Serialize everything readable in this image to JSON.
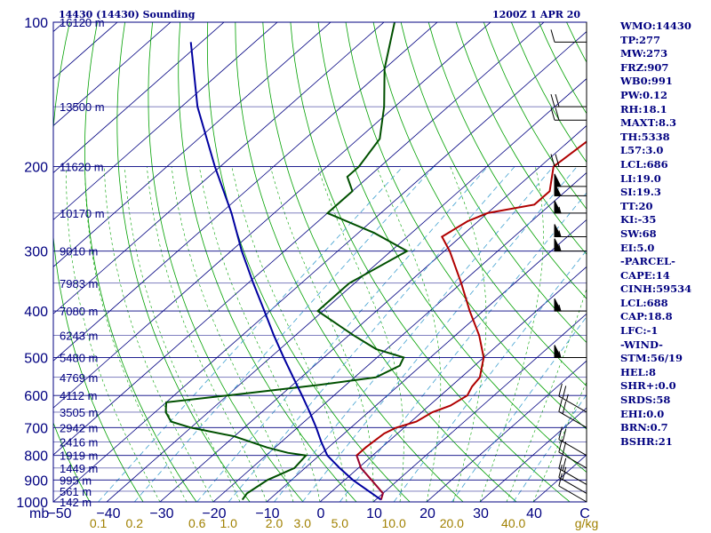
{
  "header": {
    "left": "14430 (14430) Sounding",
    "right": "1200Z  1 APR 20"
  },
  "indices": [
    "WMO:14430",
    "TP:277",
    "MW:273",
    "FRZ:907",
    "WB0:991",
    "PW:0.12",
    "RH:18.1",
    "MAXT:8.3",
    "TH:5338",
    "L57:3.0",
    "LCL:686",
    "LI:19.0",
    "SI:19.3",
    "TT:20",
    "KI:-35",
    "SW:68",
    "EI:5.0",
    "-PARCEL-",
    "CAPE:14",
    "CINH:59534",
    "LCL:688",
    "CAP:18.8",
    "LFC:-1",
    "-WIND-",
    "STM:56/19",
    "HEL:8",
    "SHR+:0.0",
    "SRDS:58",
    "EHI:0.0",
    "BRN:0.7",
    "BSHR:21"
  ],
  "colors": {
    "frame": "#000080",
    "isobar": "#000080",
    "isotherm": "#000080",
    "dry_adiabat": "#00a000",
    "moist_adiabat": "#00a000",
    "mixing_ratio": "#40a0d0",
    "temperature": "#b00000",
    "dewpoint": "#005000",
    "parcel": "#0000a0",
    "wind_axis": "#000000",
    "text": "#000080",
    "mixing_label": "#a08000"
  },
  "chart_data": {
    "type": "line",
    "chart_kind": "skew-T log-P sounding",
    "y_axis": {
      "unit": "mb",
      "scale": "log",
      "range": [
        1000,
        100
      ],
      "isobars": [
        100,
        200,
        300,
        400,
        500,
        600,
        700,
        800,
        900,
        1000
      ]
    },
    "x_axis": {
      "unit": "C",
      "ticks": [
        -50,
        -40,
        -30,
        -20,
        -10,
        0,
        10,
        20,
        30,
        40
      ]
    },
    "x_tick_labels": [
      "−50",
      "−40",
      "−30",
      "−20",
      "−10",
      "0",
      "10",
      "20",
      "30",
      "40",
      "C"
    ],
    "y_unit_label": "mb",
    "height_labels": [
      {
        "p": 100,
        "label": "16120 m"
      },
      {
        "p": 150,
        "label": "13500 m"
      },
      {
        "p": 200,
        "label": "11620 m"
      },
      {
        "p": 250,
        "label": "10170 m"
      },
      {
        "p": 300,
        "label": "9010 m"
      },
      {
        "p": 350,
        "label": "7983 m"
      },
      {
        "p": 400,
        "label": "7080 m"
      },
      {
        "p": 450,
        "label": "6243 m"
      },
      {
        "p": 500,
        "label": "5480 m"
      },
      {
        "p": 550,
        "label": "4769 m"
      },
      {
        "p": 600,
        "label": "4112 m"
      },
      {
        "p": 650,
        "label": "3505 m"
      },
      {
        "p": 700,
        "label": "2942 m"
      },
      {
        "p": 750,
        "label": "2416 m"
      },
      {
        "p": 800,
        "label": "1919 m"
      },
      {
        "p": 850,
        "label": "1449 m"
      },
      {
        "p": 900,
        "label": "995 m"
      },
      {
        "p": 950,
        "label": "561 m"
      },
      {
        "p": 1000,
        "label": "142 m"
      }
    ],
    "mixing_ratio_unit": "g/kg",
    "mixing_ratio_labels": [
      {
        "value": 0.1,
        "text": "0.1"
      },
      {
        "value": 0.2,
        "text": "0.2"
      },
      {
        "value": 0.6,
        "text": "0.6"
      },
      {
        "value": 1.0,
        "text": "1.0"
      },
      {
        "value": 2.0,
        "text": "2.0"
      },
      {
        "value": 3.0,
        "text": "3.0"
      },
      {
        "value": 5.0,
        "text": "5.0"
      },
      {
        "value": 10.0,
        "text": "10.0"
      },
      {
        "value": 20.0,
        "text": "20.0"
      },
      {
        "value": 40.0,
        "text": "40.0"
      }
    ],
    "series": [
      {
        "key": "temperature",
        "points": [
          {
            "p": 990,
            "t": 11.0
          },
          {
            "p": 960,
            "t": 10.0
          },
          {
            "p": 900,
            "t": 5.0
          },
          {
            "p": 850,
            "t": 0.5
          },
          {
            "p": 800,
            "t": -3.0
          },
          {
            "p": 770,
            "t": -3.0
          },
          {
            "p": 720,
            "t": -2.5
          },
          {
            "p": 700,
            "t": -1.5
          },
          {
            "p": 680,
            "t": 1.0
          },
          {
            "p": 650,
            "t": 2.0
          },
          {
            "p": 630,
            "t": 4.0
          },
          {
            "p": 600,
            "t": 5.0
          },
          {
            "p": 575,
            "t": 4.0
          },
          {
            "p": 550,
            "t": 3.5
          },
          {
            "p": 500,
            "t": 0.0
          },
          {
            "p": 450,
            "t": -5.5
          },
          {
            "p": 400,
            "t": -12.5
          },
          {
            "p": 350,
            "t": -20.0
          },
          {
            "p": 300,
            "t": -29.0
          },
          {
            "p": 280,
            "t": -33.5
          },
          {
            "p": 260,
            "t": -32.0
          },
          {
            "p": 250,
            "t": -30.0
          },
          {
            "p": 240,
            "t": -23.0
          },
          {
            "p": 225,
            "t": -23.0
          },
          {
            "p": 200,
            "t": -27.5
          },
          {
            "p": 175,
            "t": -26.5
          },
          {
            "p": 150,
            "t": -30.0
          },
          {
            "p": 125,
            "t": -36.0
          },
          {
            "p": 100,
            "t": -45.0
          }
        ]
      },
      {
        "key": "dewpoint",
        "points": [
          {
            "p": 990,
            "t": -15.0
          },
          {
            "p": 960,
            "t": -15.5
          },
          {
            "p": 900,
            "t": -14.5
          },
          {
            "p": 850,
            "t": -12.0
          },
          {
            "p": 800,
            "t": -12.5
          },
          {
            "p": 790,
            "t": -16.5
          },
          {
            "p": 770,
            "t": -21.5
          },
          {
            "p": 730,
            "t": -30.0
          },
          {
            "p": 700,
            "t": -40.0
          },
          {
            "p": 680,
            "t": -45.0
          },
          {
            "p": 650,
            "t": -48.0
          },
          {
            "p": 620,
            "t": -50.0
          },
          {
            "p": 600,
            "t": -40.0
          },
          {
            "p": 570,
            "t": -25.0
          },
          {
            "p": 550,
            "t": -16.0
          },
          {
            "p": 520,
            "t": -14.0
          },
          {
            "p": 500,
            "t": -15.0
          },
          {
            "p": 480,
            "t": -22.0
          },
          {
            "p": 450,
            "t": -29.0
          },
          {
            "p": 400,
            "t": -41.0
          },
          {
            "p": 350,
            "t": -41.0
          },
          {
            "p": 300,
            "t": -37.0
          },
          {
            "p": 275,
            "t": -47.0
          },
          {
            "p": 250,
            "t": -60.0
          },
          {
            "p": 225,
            "t": -60.0
          },
          {
            "p": 210,
            "t": -64.0
          },
          {
            "p": 200,
            "t": -64.0
          },
          {
            "p": 175,
            "t": -66.0
          },
          {
            "p": 150,
            "t": -72.0
          },
          {
            "p": 125,
            "t": -80.0
          },
          {
            "p": 100,
            "t": -88.0
          }
        ]
      },
      {
        "key": "parcel",
        "points": [
          {
            "p": 990,
            "t": 11.0
          },
          {
            "p": 900,
            "t": 1.5
          },
          {
            "p": 850,
            "t": -3.5
          },
          {
            "p": 800,
            "t": -8.5
          },
          {
            "p": 750,
            "t": -12.5
          },
          {
            "p": 700,
            "t": -16.5
          },
          {
            "p": 650,
            "t": -21.0
          },
          {
            "p": 600,
            "t": -26.0
          },
          {
            "p": 550,
            "t": -31.5
          },
          {
            "p": 500,
            "t": -37.5
          },
          {
            "p": 450,
            "t": -44.0
          },
          {
            "p": 400,
            "t": -51.0
          },
          {
            "p": 350,
            "t": -59.0
          },
          {
            "p": 300,
            "t": -68.0
          },
          {
            "p": 250,
            "t": -78.0
          },
          {
            "p": 200,
            "t": -91.0
          },
          {
            "p": 150,
            "t": -107.0
          },
          {
            "p": 110,
            "t": -122.0
          }
        ]
      }
    ],
    "wind_barbs": [
      {
        "p": 1000,
        "dir": 300,
        "spd": 10
      },
      {
        "p": 960,
        "dir": 300,
        "spd": 20
      },
      {
        "p": 920,
        "dir": 300,
        "spd": 20
      },
      {
        "p": 850,
        "dir": 300,
        "spd": 20
      },
      {
        "p": 800,
        "dir": 300,
        "spd": 20
      },
      {
        "p": 700,
        "dir": 300,
        "spd": 20
      },
      {
        "p": 650,
        "dir": 300,
        "spd": 25
      },
      {
        "p": 500,
        "dir": 270,
        "spd": 55
      },
      {
        "p": 400,
        "dir": 270,
        "spd": 55
      },
      {
        "p": 300,
        "dir": 270,
        "spd": 55
      },
      {
        "p": 280,
        "dir": 270,
        "spd": 55
      },
      {
        "p": 250,
        "dir": 270,
        "spd": 55
      },
      {
        "p": 230,
        "dir": 270,
        "spd": 50
      },
      {
        "p": 220,
        "dir": 270,
        "spd": 50
      },
      {
        "p": 200,
        "dir": 270,
        "spd": 20
      },
      {
        "p": 160,
        "dir": 270,
        "spd": 20
      },
      {
        "p": 150,
        "dir": 270,
        "spd": 20
      },
      {
        "p": 110,
        "dir": 270,
        "spd": 10
      }
    ]
  }
}
